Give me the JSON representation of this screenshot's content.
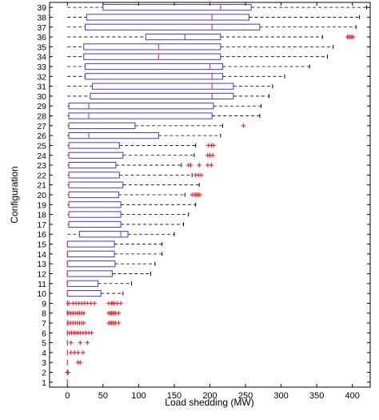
{
  "chart_data": {
    "type": "boxplot",
    "orientation": "horizontal",
    "xlabel": "Load shedding (MW)",
    "ylabel": "Configuration",
    "xlim": [
      -25,
      425
    ],
    "xticks": [
      0,
      50,
      100,
      150,
      200,
      250,
      300,
      350,
      400
    ],
    "ylim": [
      0.5,
      39.5
    ],
    "colors": {
      "box": "#3a3adb",
      "median": "#e8404e",
      "outlier": "#e8202a",
      "whisker": "#000000"
    },
    "boxes": [
      {
        "config": "1",
        "whisker_low": 0,
        "q1": 0,
        "median": 0,
        "q3": 0,
        "whisker_high": 0,
        "outliers": []
      },
      {
        "config": "2",
        "whisker_low": 0,
        "q1": 0,
        "median": 0,
        "q3": 0,
        "whisker_high": 0,
        "outliers": [
          0,
          1
        ]
      },
      {
        "config": "3",
        "whisker_low": 0,
        "q1": 0,
        "median": 0,
        "q3": 0,
        "whisker_high": 0,
        "outliers": [
          15,
          18
        ]
      },
      {
        "config": "4",
        "whisker_low": 0,
        "q1": 0,
        "median": 0,
        "q3": 0,
        "whisker_high": 0,
        "outliers": [
          5,
          10,
          15,
          22
        ]
      },
      {
        "config": "5",
        "whisker_low": 0,
        "q1": 0,
        "median": 0,
        "q3": 0,
        "whisker_high": 0,
        "outliers": [
          5,
          18,
          28
        ]
      },
      {
        "config": "6",
        "whisker_low": 0,
        "q1": 0,
        "median": 0,
        "q3": 0,
        "whisker_high": 0,
        "outliers": [
          3,
          6,
          9,
          12,
          15,
          18,
          22,
          26,
          30,
          34
        ]
      },
      {
        "config": "7",
        "whisker_low": 0,
        "q1": 0,
        "median": 0,
        "q3": 0,
        "whisker_high": 0,
        "outliers": [
          2,
          5,
          8,
          11,
          14,
          17,
          20,
          23,
          58,
          60,
          62,
          64,
          66,
          68,
          72
        ]
      },
      {
        "config": "8",
        "whisker_low": 0,
        "q1": 0,
        "median": 0,
        "q3": 0,
        "whisker_high": 0,
        "outliers": [
          2,
          5,
          8,
          11,
          14,
          17,
          20,
          23,
          58,
          60,
          62,
          64,
          66,
          68,
          72
        ]
      },
      {
        "config": "9",
        "whisker_low": 0,
        "q1": 0,
        "median": 0,
        "q3": 0,
        "whisker_high": 0,
        "outliers": [
          2,
          8,
          12,
          16,
          20,
          24,
          28,
          33,
          38,
          58,
          62,
          64,
          66,
          70,
          75
        ]
      },
      {
        "config": "10",
        "whisker_low": 0,
        "q1": 0,
        "median": 0,
        "q3": 47,
        "whisker_high": 78,
        "outliers": []
      },
      {
        "config": "11",
        "whisker_low": 0,
        "q1": 0,
        "median": 0,
        "q3": 43,
        "whisker_high": 90,
        "outliers": []
      },
      {
        "config": "12",
        "whisker_low": 0,
        "q1": 0,
        "median": 0,
        "q3": 63,
        "whisker_high": 117,
        "outliers": []
      },
      {
        "config": "13",
        "whisker_low": 0,
        "q1": 0,
        "median": 0,
        "q3": 67,
        "whisker_high": 123,
        "outliers": []
      },
      {
        "config": "14",
        "whisker_low": 0,
        "q1": 0,
        "median": 0,
        "q3": 66,
        "whisker_high": 133,
        "outliers": []
      },
      {
        "config": "15",
        "whisker_low": 0,
        "q1": 0,
        "median": 0,
        "q3": 66,
        "whisker_high": 133,
        "outliers": []
      },
      {
        "config": "16",
        "whisker_low": 0,
        "q1": 17,
        "median": 75,
        "q3": 85,
        "whisker_high": 150,
        "outliers": []
      },
      {
        "config": "17",
        "whisker_low": 0,
        "q1": 2,
        "median": 2,
        "q3": 75,
        "whisker_high": 163,
        "outliers": []
      },
      {
        "config": "18",
        "whisker_low": 0,
        "q1": 2,
        "median": 2,
        "q3": 75,
        "whisker_high": 170,
        "outliers": []
      },
      {
        "config": "19",
        "whisker_low": 0,
        "q1": 2,
        "median": 2,
        "q3": 75,
        "whisker_high": 180,
        "outliers": []
      },
      {
        "config": "20",
        "whisker_low": 0,
        "q1": 2,
        "median": 2,
        "q3": 72,
        "whisker_high": 165,
        "outliers": [
          175,
          178,
          180,
          182,
          184,
          186
        ]
      },
      {
        "config": "21",
        "whisker_low": 0,
        "q1": 2,
        "median": 2,
        "q3": 78,
        "whisker_high": 185,
        "outliers": []
      },
      {
        "config": "22",
        "whisker_low": 0,
        "q1": 2,
        "median": 2,
        "q3": 73,
        "whisker_high": 175,
        "outliers": [
          180,
          184,
          188
        ]
      },
      {
        "config": "23",
        "whisker_low": 0,
        "q1": 2,
        "median": 2,
        "q3": 68,
        "whisker_high": 160,
        "outliers": [
          170,
          173,
          185,
          197,
          202
        ]
      },
      {
        "config": "24",
        "whisker_low": 0,
        "q1": 2,
        "median": 2,
        "q3": 78,
        "whisker_high": 178,
        "outliers": [
          197,
          200,
          204
        ]
      },
      {
        "config": "25",
        "whisker_low": 0,
        "q1": 2,
        "median": 2,
        "q3": 73,
        "whisker_high": 180,
        "outliers": [
          198,
          202,
          205
        ]
      },
      {
        "config": "26",
        "whisker_low": 0,
        "q1": 2,
        "median": 30,
        "q3": 128,
        "whisker_high": 215,
        "outliers": []
      },
      {
        "config": "27",
        "whisker_low": 0,
        "q1": 2,
        "median": 2,
        "q3": 95,
        "whisker_high": 218,
        "outliers": [
          247
        ]
      },
      {
        "config": "28",
        "whisker_low": 0,
        "q1": 2,
        "median": 30,
        "q3": 203,
        "whisker_high": 270,
        "outliers": []
      },
      {
        "config": "29",
        "whisker_low": 0,
        "q1": 2,
        "median": 30,
        "q3": 205,
        "whisker_high": 272,
        "outliers": []
      },
      {
        "config": "30",
        "whisker_low": 0,
        "q1": 32,
        "median": 203,
        "q3": 233,
        "whisker_high": 283,
        "outliers": []
      },
      {
        "config": "31",
        "whisker_low": 0,
        "q1": 35,
        "median": 203,
        "q3": 233,
        "whisker_high": 288,
        "outliers": []
      },
      {
        "config": "32",
        "whisker_low": 0,
        "q1": 25,
        "median": 203,
        "q3": 218,
        "whisker_high": 305,
        "outliers": []
      },
      {
        "config": "33",
        "whisker_low": 0,
        "q1": 25,
        "median": 200,
        "q3": 218,
        "whisker_high": 340,
        "outliers": []
      },
      {
        "config": "34",
        "whisker_low": 0,
        "q1": 23,
        "median": 128,
        "q3": 215,
        "whisker_high": 365,
        "outliers": []
      },
      {
        "config": "35",
        "whisker_low": 0,
        "q1": 23,
        "median": 128,
        "q3": 215,
        "whisker_high": 373,
        "outliers": []
      },
      {
        "config": "36",
        "whisker_low": 0,
        "q1": 110,
        "median": 165,
        "q3": 215,
        "whisker_high": 358,
        "outliers": [
          393,
          395,
          397,
          399,
          401
        ]
      },
      {
        "config": "37",
        "whisker_low": 0,
        "q1": 25,
        "median": 203,
        "q3": 270,
        "whisker_high": 405,
        "outliers": []
      },
      {
        "config": "38",
        "whisker_low": 0,
        "q1": 27,
        "median": 203,
        "q3": 255,
        "whisker_high": 410,
        "outliers": []
      },
      {
        "config": "39",
        "whisker_low": 0,
        "q1": 50,
        "median": 215,
        "q3": 258,
        "whisker_high": 420,
        "outliers": []
      }
    ]
  }
}
